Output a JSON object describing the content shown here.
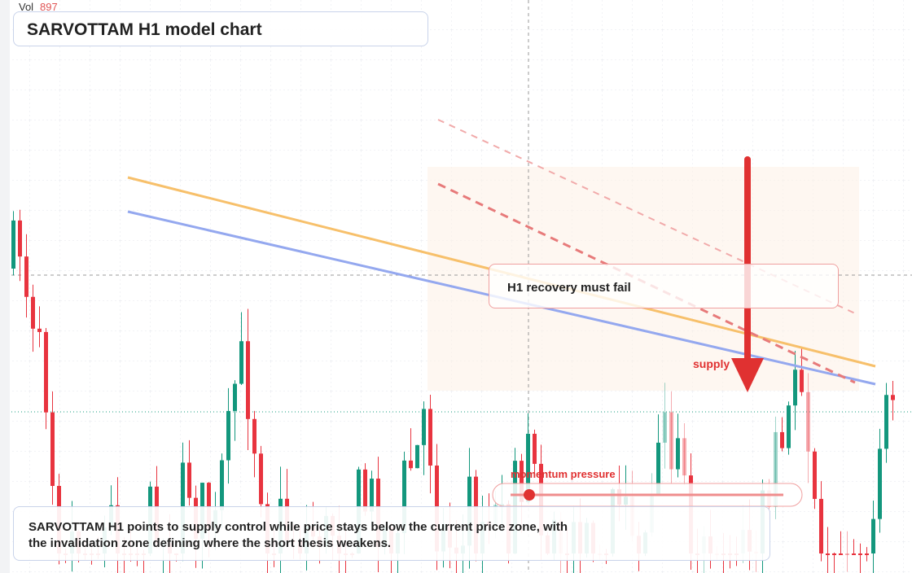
{
  "header": {
    "vol_label": "Vol",
    "vol_value": "897",
    "title": "SARVOTTAM H1 model chart"
  },
  "annotations": {
    "callout": "H1 recovery must fail",
    "zone": "supply",
    "momentum": "momentum pressure"
  },
  "footer": {
    "text": "SARVOTTAM H1 points to supply control while price stays below the current price zone, with the invalidation zone defining where the short thesis weakens."
  }
}
